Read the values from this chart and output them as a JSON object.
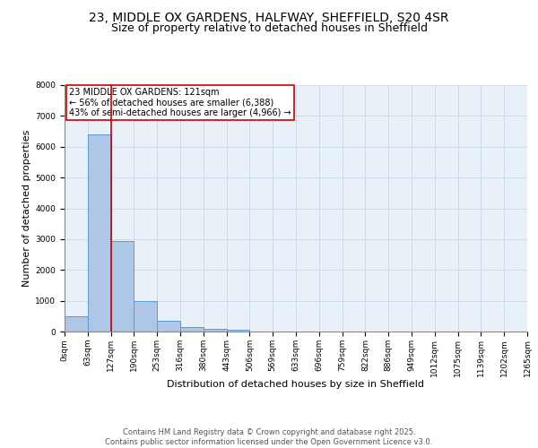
{
  "title_line1": "23, MIDDLE OX GARDENS, HALFWAY, SHEFFIELD, S20 4SR",
  "title_line2": "Size of property relative to detached houses in Sheffield",
  "xlabel": "Distribution of detached houses by size in Sheffield",
  "ylabel": "Number of detached properties",
  "bar_values": [
    500,
    6400,
    2950,
    1000,
    350,
    150,
    100,
    50,
    0,
    0,
    0,
    0,
    0,
    0,
    0,
    0,
    0,
    0,
    0,
    0
  ],
  "bar_color": "#aec6e8",
  "bar_edge_color": "#5b9bd5",
  "x_labels": [
    "0sqm",
    "63sqm",
    "127sqm",
    "190sqm",
    "253sqm",
    "316sqm",
    "380sqm",
    "443sqm",
    "506sqm",
    "569sqm",
    "633sqm",
    "696sqm",
    "759sqm",
    "822sqm",
    "886sqm",
    "949sqm",
    "1012sqm",
    "1075sqm",
    "1139sqm",
    "1202sqm",
    "1265sqm"
  ],
  "property_line_x": 2,
  "property_line_color": "#cc0000",
  "annotation_text": "23 MIDDLE OX GARDENS: 121sqm\n← 56% of detached houses are smaller (6,388)\n43% of semi-detached houses are larger (4,966) →",
  "annotation_box_color": "#cc0000",
  "ylim": [
    0,
    8000
  ],
  "yticks": [
    0,
    1000,
    2000,
    3000,
    4000,
    5000,
    6000,
    7000,
    8000
  ],
  "grid_color": "#c8d8e8",
  "background_color": "#e8f0f8",
  "footer_text": "Contains HM Land Registry data © Crown copyright and database right 2025.\nContains public sector information licensed under the Open Government Licence v3.0.",
  "title_fontsize": 10,
  "subtitle_fontsize": 9,
  "label_fontsize": 8,
  "tick_fontsize": 6.5,
  "footer_fontsize": 6,
  "annotation_fontsize": 7
}
